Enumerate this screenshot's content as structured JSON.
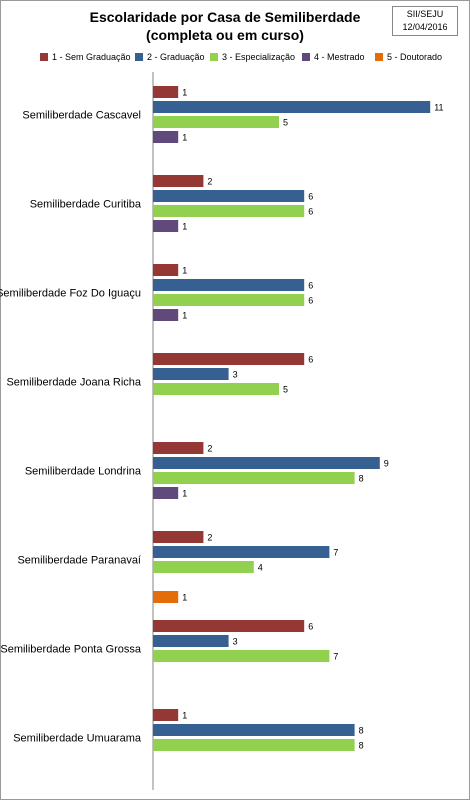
{
  "source_box": {
    "line1": "SII/SEJU",
    "line2": "12/04/2016"
  },
  "chart_data": {
    "type": "bar",
    "orientation": "horizontal",
    "title": "Escolaridade por Casa de Semiliberdade",
    "subtitle": "(completa ou em curso)",
    "xlabel": "",
    "ylabel": "",
    "grid": false,
    "legend_position": "top",
    "categories": [
      "Semiliberdade Cascavel",
      "Semiliberdade Curitiba",
      "Semiliberdade Foz Do Iguaçu",
      "Semiliberdade Joana Richa",
      "Semiliberdade Londrina",
      "Semiliberdade Paranavaí",
      "Semiliberdade Ponta Grossa",
      "Semiliberdade Umuarama"
    ],
    "series": [
      {
        "name": "1 - Sem Graduação",
        "color": "#953735",
        "values": [
          1,
          2,
          1,
          6,
          2,
          2,
          6,
          1
        ]
      },
      {
        "name": "2 - Graduação",
        "color": "#376092",
        "values": [
          11,
          6,
          6,
          3,
          9,
          7,
          3,
          8
        ]
      },
      {
        "name": "3 - Especialização",
        "color": "#92d050",
        "values": [
          5,
          6,
          6,
          5,
          8,
          4,
          7,
          8
        ]
      },
      {
        "name": "4 - Mestrado",
        "color": "#604a7b",
        "values": [
          1,
          1,
          1,
          null,
          1,
          null,
          null,
          null
        ]
      },
      {
        "name": "5 - Doutorado",
        "color": "#e46c0a",
        "values": [
          null,
          null,
          null,
          null,
          null,
          1,
          null,
          null
        ]
      }
    ],
    "xlim": [
      0,
      11
    ]
  }
}
